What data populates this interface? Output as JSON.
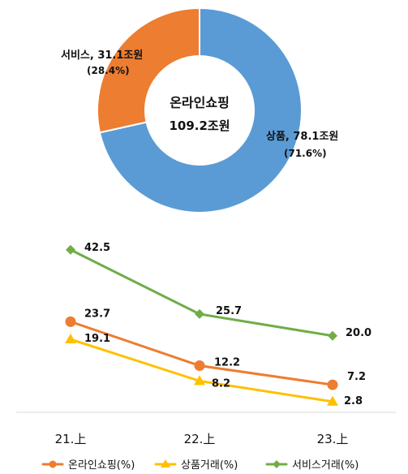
{
  "chart_data": [
    {
      "type": "pie",
      "variant": "donut",
      "center_label": {
        "title": "온라인쇼핑",
        "total": "109.2조원"
      },
      "slices": [
        {
          "key": "goods",
          "label": "상품, 78.1조원",
          "value": 78.1,
          "percent_label": "(71.6%)",
          "color": "#5B9BD5"
        },
        {
          "key": "service",
          "label": "서비스, 31.1조원",
          "value": 31.1,
          "percent_label": "(28.4%)",
          "color": "#ED7D31"
        }
      ]
    },
    {
      "type": "line",
      "categories": [
        "21.上",
        "22.上",
        "23.上"
      ],
      "legend_position": "bottom",
      "grid": false,
      "series": [
        {
          "key": "online",
          "name": "온라인쇼핑(%)",
          "values": [
            23.7,
            12.2,
            7.2
          ],
          "labels": [
            "23.7",
            "12.2",
            "7.2"
          ],
          "color": "#ED7D31",
          "marker": "circle"
        },
        {
          "key": "goods",
          "name": "상품거래(%)",
          "values": [
            19.1,
            8.2,
            2.8
          ],
          "labels": [
            "19.1",
            "8.2",
            "2.8"
          ],
          "color": "#FFC000",
          "marker": "triangle"
        },
        {
          "key": "service",
          "name": "서비스거래(%)",
          "values": [
            42.5,
            25.7,
            20.0
          ],
          "labels": [
            "42.5",
            "25.7",
            "20.0"
          ],
          "color": "#70AD47",
          "marker": "diamond"
        }
      ]
    }
  ]
}
